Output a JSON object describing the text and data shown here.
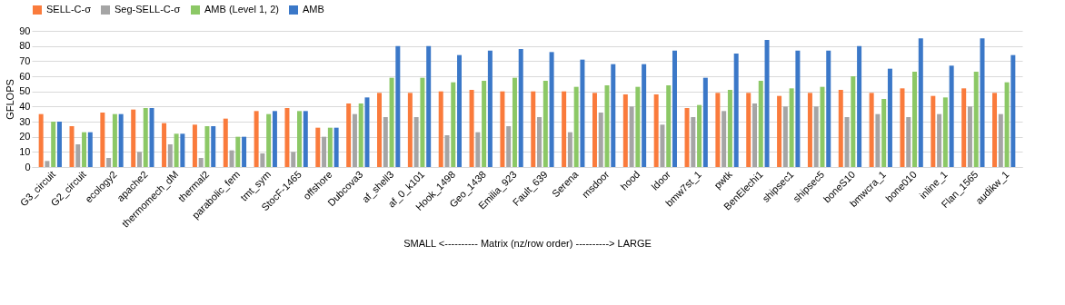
{
  "chart_data": {
    "type": "bar",
    "xlabel": "SMALL <---------- Matrix (nz/row order) ----------> LARGE",
    "ylabel": "GFLOPS",
    "categories": [
      "G3_circuit",
      "G2_circuit",
      "ecology2",
      "apache2",
      "thermomech_dM",
      "thermal2",
      "parabolic_fem",
      "tmt_sym",
      "StocF-1465",
      "offshore",
      "Dubcova3",
      "af_shell3",
      "af_0_k101",
      "Hook_1498",
      "Geo_1438",
      "Emilia_923",
      "Fault_639",
      "Serena",
      "msdoor",
      "hood",
      "ldoor",
      "bmw7st_1",
      "pwtk",
      "BenElechi1",
      "shipsec1",
      "shipsec5",
      "boneS10",
      "bmwcra_1",
      "bone010",
      "inline_1",
      "Flan_1565",
      "audikw_1"
    ],
    "series": [
      {
        "name": "SELL-C-σ",
        "color": "#fa7b3c",
        "values": [
          35,
          27,
          36,
          38,
          29,
          28,
          32,
          37,
          39,
          26,
          42,
          49,
          49,
          50,
          51,
          50,
          50,
          50,
          49,
          48,
          48,
          39,
          49,
          49,
          47,
          49,
          51,
          49,
          52,
          47,
          52,
          49
        ]
      },
      {
        "name": "Seg-SELL-C-σ",
        "color": "#a5a5a5",
        "values": [
          4,
          15,
          6,
          10,
          15,
          6,
          11,
          9,
          10,
          20,
          35,
          33,
          33,
          21,
          23,
          27,
          33,
          23,
          36,
          40,
          28,
          33,
          37,
          42,
          40,
          40,
          33,
          35,
          33,
          35,
          40,
          35
        ]
      },
      {
        "name": "AMB (Level 1, 2)",
        "color": "#8cc866",
        "values": [
          30,
          23,
          35,
          39,
          22,
          27,
          20,
          35,
          37,
          26,
          42,
          59,
          59,
          56,
          57,
          59,
          57,
          53,
          54,
          53,
          54,
          41,
          51,
          57,
          52,
          53,
          60,
          45,
          63,
          46,
          63,
          56
        ]
      },
      {
        "name": "AMB",
        "color": "#3b78c8",
        "values": [
          30,
          23,
          35,
          39,
          22,
          27,
          20,
          37,
          37,
          26,
          46,
          80,
          80,
          74,
          77,
          78,
          76,
          71,
          68,
          68,
          77,
          59,
          75,
          84,
          77,
          77,
          80,
          65,
          85,
          67,
          85,
          74
        ]
      }
    ],
    "ylim": [
      0,
      90
    ],
    "yticks": [
      0,
      10,
      20,
      30,
      40,
      50,
      60,
      70,
      80,
      90
    ],
    "grid": "y",
    "legend": "top"
  }
}
